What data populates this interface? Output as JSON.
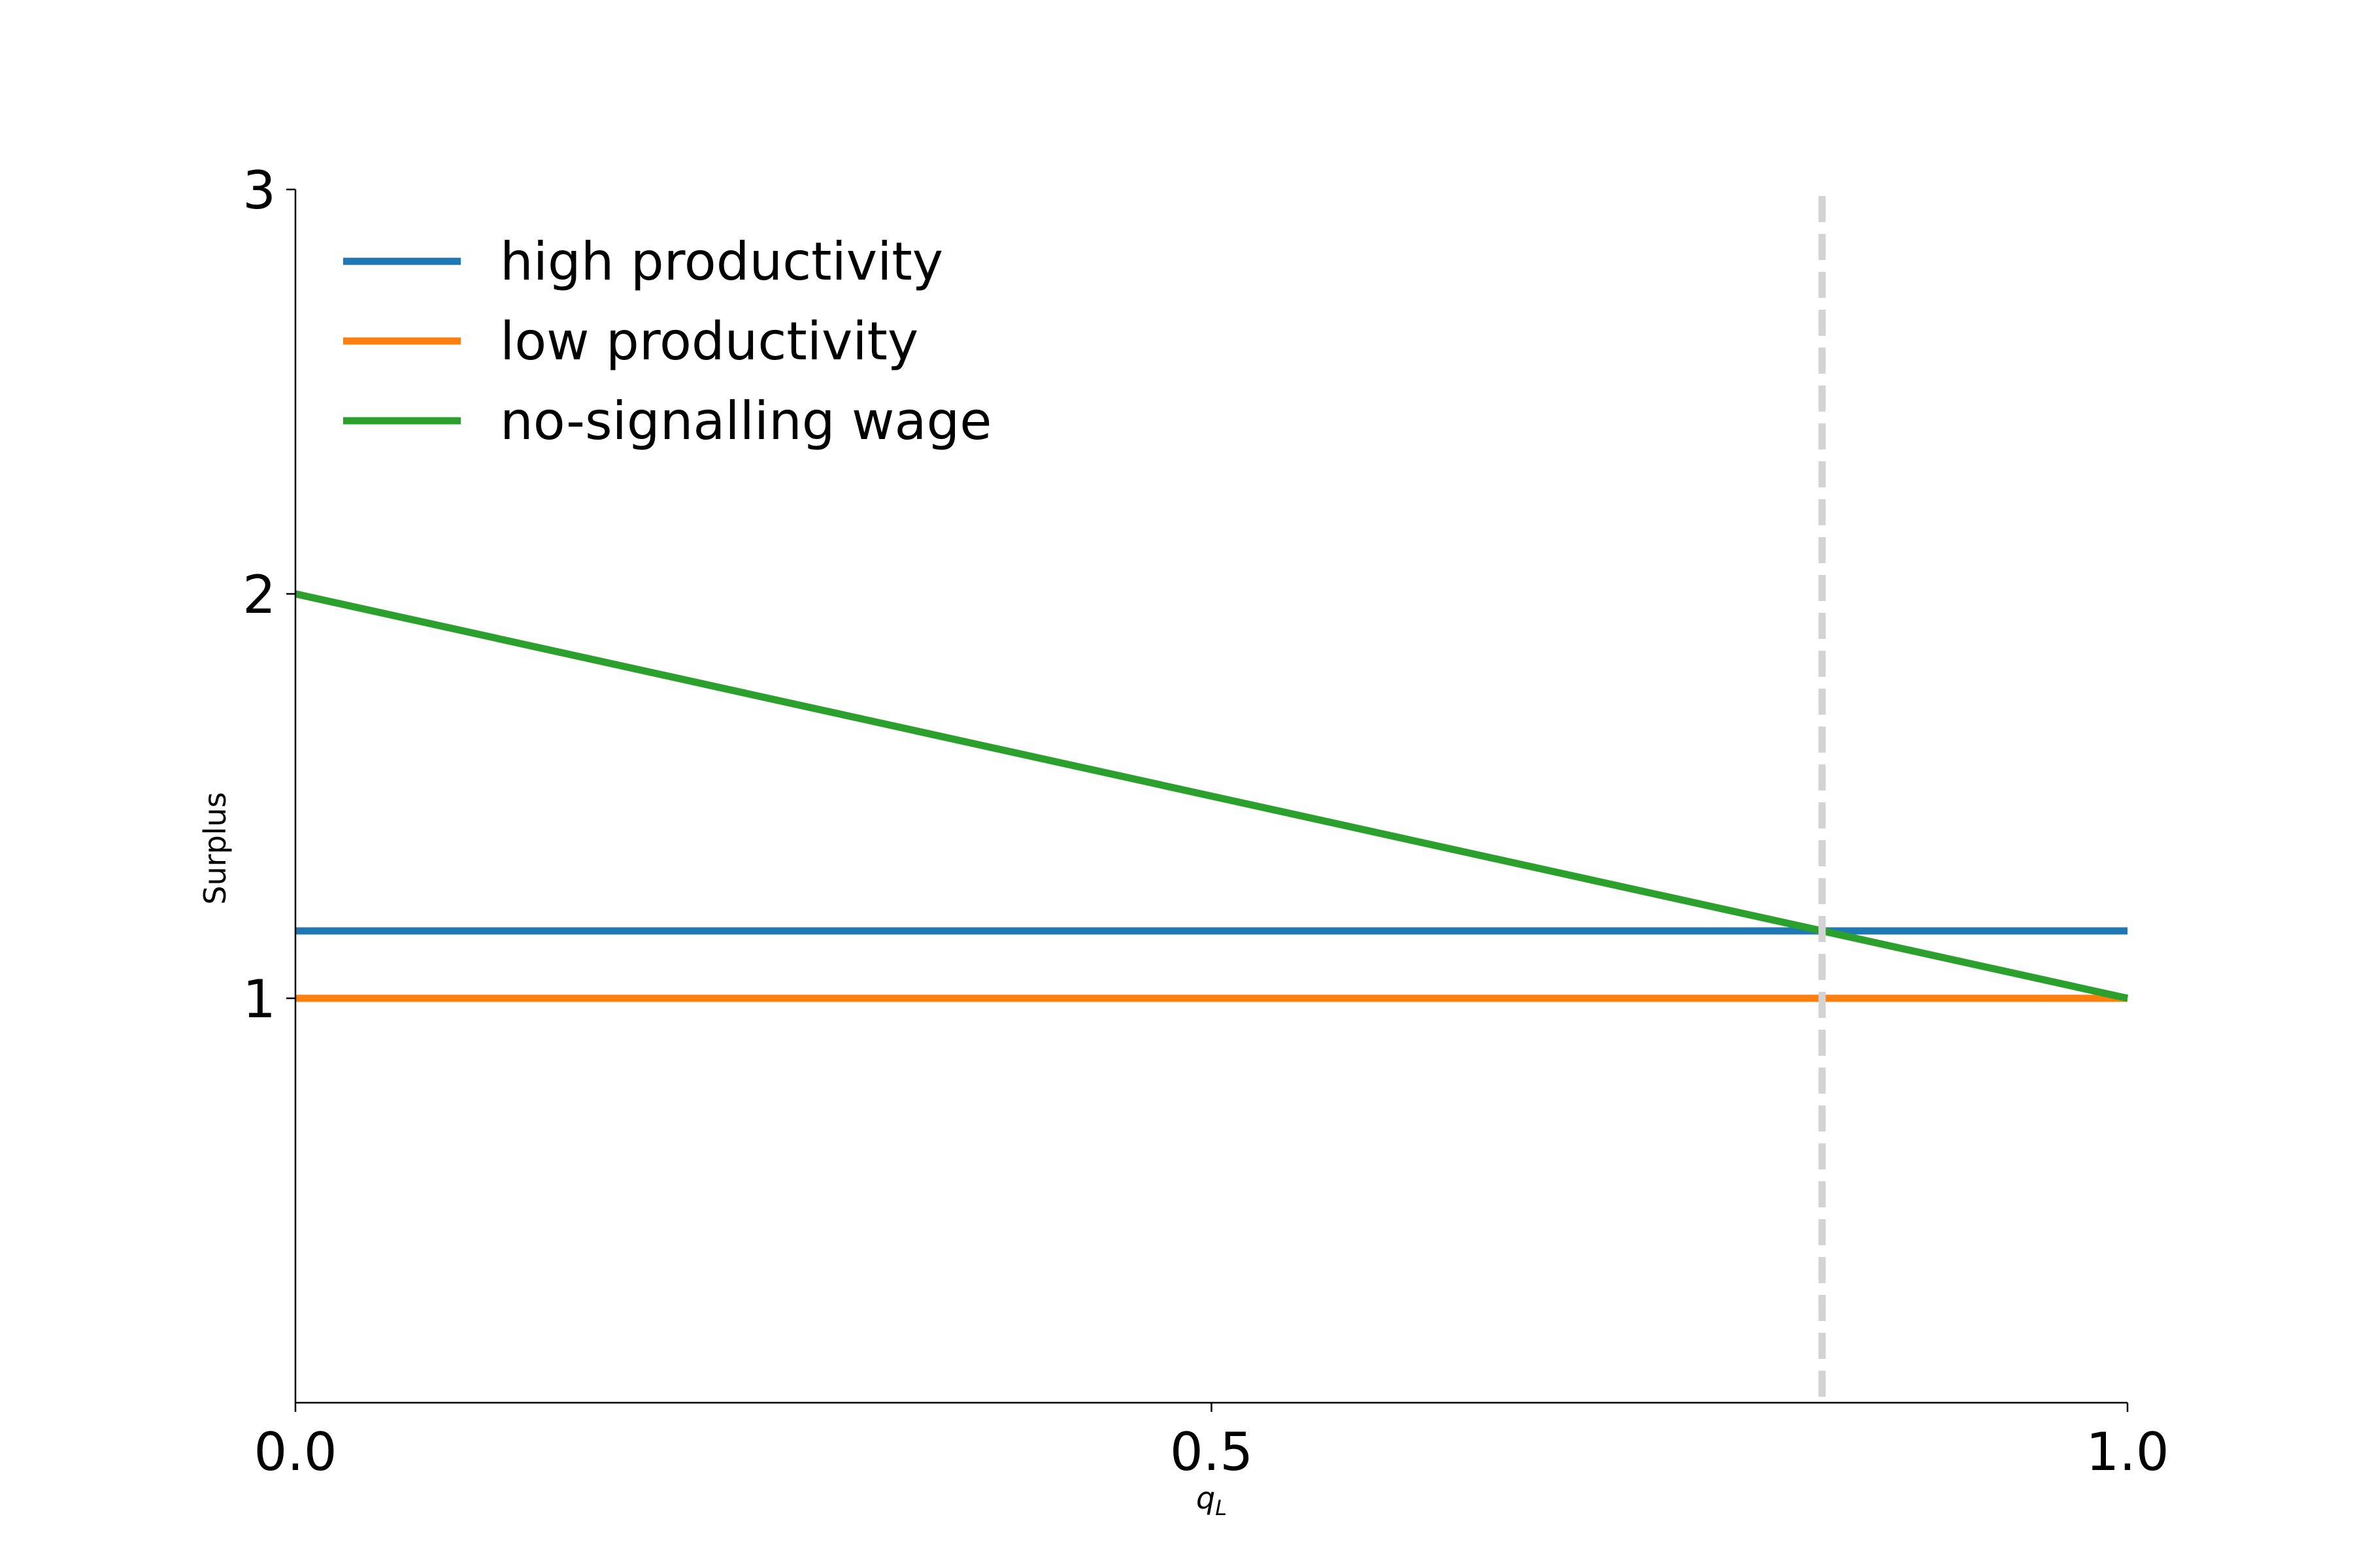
{
  "chart_data": {
    "type": "line",
    "xlabel": "q",
    "xlabel_sub": "L",
    "ylabel": "Surplus",
    "xlim": [
      0,
      1
    ],
    "ylim": [
      0,
      3
    ],
    "xticks": [
      {
        "value": 0,
        "label": "0.0"
      },
      {
        "value": 0.5,
        "label": "0.5"
      },
      {
        "value": 1,
        "label": "1.0"
      }
    ],
    "yticks": [
      {
        "value": 1,
        "label": "1"
      },
      {
        "value": 2,
        "label": "2"
      },
      {
        "value": 3,
        "label": "3"
      }
    ],
    "grid": false,
    "legend_position": "top-left",
    "series": [
      {
        "name": "high productivity",
        "color": "#1f77b4",
        "x": [
          0,
          1
        ],
        "y": [
          1.1667,
          1.1667
        ]
      },
      {
        "name": "low productivity",
        "color": "#ff7f0e",
        "x": [
          0,
          1
        ],
        "y": [
          1,
          1
        ]
      },
      {
        "name": "no-signalling wage",
        "color": "#2ca02c",
        "x": [
          0,
          1
        ],
        "y": [
          2,
          1
        ]
      }
    ],
    "reference_line": {
      "orientation": "vertical",
      "x": 0.8333,
      "style": "dashed",
      "color": "#d3d3d3"
    }
  }
}
